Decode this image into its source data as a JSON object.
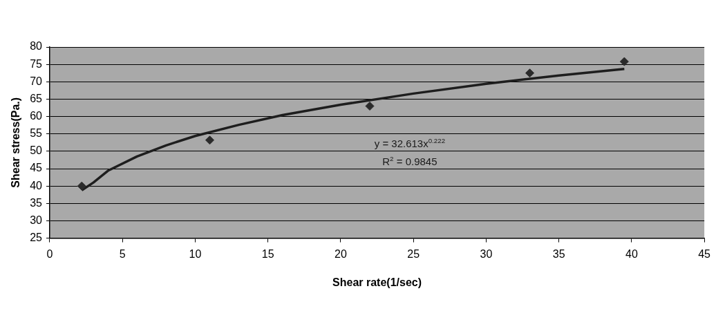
{
  "chart_data": {
    "type": "scatter",
    "xlabel": "Shear rate(1/sec)",
    "ylabel": "Shear stress(Pa.)",
    "xlim": [
      0,
      45
    ],
    "xticks": [
      0,
      5,
      10,
      15,
      20,
      25,
      30,
      35,
      40,
      45
    ],
    "ylim": [
      25,
      80
    ],
    "yticks": [
      25,
      30,
      35,
      40,
      45,
      50,
      55,
      60,
      65,
      70,
      75,
      80
    ],
    "grid": "y",
    "legend": false,
    "marker": "diamond",
    "series": [
      {
        "color": "#2b2b2b",
        "x": [
          2.2,
          11,
          22,
          33,
          39.5
        ],
        "values": [
          40,
          53.2,
          63,
          72.5,
          75.8
        ]
      },
      {
        "type": "line",
        "color": "#1e1e1e",
        "marker": "none",
        "x": [
          2.2,
          3,
          4,
          6,
          8,
          10,
          13,
          16,
          20,
          25,
          30,
          35,
          39.5
        ],
        "values": [
          38.8,
          41,
          44.4,
          48.5,
          51.7,
          54.4,
          57.6,
          60.4,
          63.4,
          66.6,
          69.4,
          71.8,
          73.7
        ]
      }
    ],
    "annotations": [
      "y = 32.613x$^{0.222}$",
      "R$^{2}$ = 0.9845"
    ]
  }
}
